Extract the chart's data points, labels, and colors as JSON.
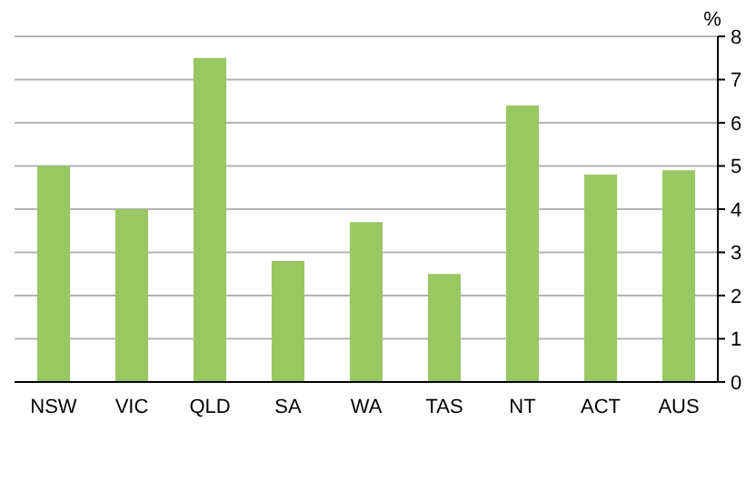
{
  "chart_data": {
    "type": "bar",
    "ylabel": "%",
    "categories": [
      "NSW",
      "VIC",
      "QLD",
      "SA",
      "WA",
      "TAS",
      "NT",
      "ACT",
      "AUS"
    ],
    "values": [
      5.0,
      4.0,
      7.5,
      2.8,
      3.7,
      2.5,
      6.4,
      4.8,
      4.9
    ],
    "color": "#99c862",
    "ylim": [
      0,
      8
    ],
    "yticks": [
      0,
      1,
      2,
      3,
      4,
      5,
      6,
      7,
      8
    ],
    "grid": "y"
  }
}
